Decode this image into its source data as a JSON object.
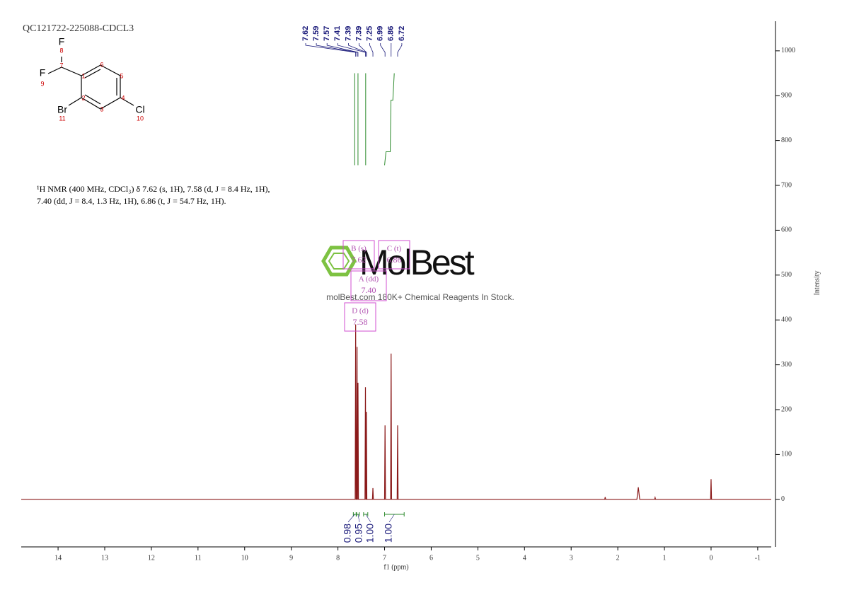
{
  "chart_data": {
    "type": "line",
    "title": "QC121722-225088-CDCL3",
    "description": [
      "¹H NMR (400 MHz, CDCl₃) δ 7.62 (s, 1H), 7.58 (d, J = 8.4 Hz, 1H),",
      "7.40 (dd, J = 8.4, 1.3 Hz, 1H), 6.86 (t, J = 54.7 Hz, 1H)."
    ],
    "x_label": "f1 (ppm)",
    "y_label": "Intensity",
    "xlim": [
      14.79,
      -1.29
    ],
    "xticks": [
      14,
      13,
      12,
      11,
      10,
      9,
      8,
      7,
      6,
      5,
      4,
      3,
      2,
      1,
      0,
      -1
    ],
    "ylim": [
      -106,
      1066
    ],
    "yticks": [
      0,
      100,
      200,
      300,
      400,
      500,
      600,
      700,
      800,
      900,
      1000
    ],
    "x": [
      14.79,
      7.63,
      7.62,
      7.61,
      7.6,
      7.59,
      7.585,
      7.58,
      7.57,
      7.56,
      7.42,
      7.41,
      7.4,
      7.395,
      7.39,
      7.38,
      7.26,
      7.25,
      7.24,
      7.0,
      6.99,
      6.98,
      6.87,
      6.86,
      6.85,
      6.73,
      6.72,
      6.71,
      2.28,
      2.27,
      2.26,
      1.59,
      1.56,
      1.53,
      1.21,
      1.2,
      1.19,
      0.01,
      0,
      -0.01,
      -1.29
    ],
    "series": [
      {
        "color": "#8b1a1a",
        "values": [
          0,
          0,
          390,
          0,
          0,
          340,
          0,
          0,
          260,
          0,
          0,
          250,
          0,
          0,
          195,
          0,
          0,
          25,
          0,
          0,
          165,
          0,
          0,
          325,
          0,
          0,
          165,
          0,
          0,
          5,
          0,
          0,
          27,
          0,
          0,
          4,
          0,
          0,
          45,
          0,
          0
        ]
      }
    ],
    "peaks": [
      7.62,
      7.59,
      7.57,
      7.41,
      7.39,
      7.39,
      7.25,
      6.99,
      6.86,
      6.72
    ],
    "integrals": {
      "values": [
        0.98,
        0.95,
        1,
        1
      ],
      "value_labels": [
        "0.98",
        "0.95",
        "1.00",
        "1.00"
      ],
      "ranges": [
        [
          7.67,
          7.61
        ],
        [
          7.6,
          7.54
        ],
        [
          7.45,
          7.36
        ],
        [
          7.0,
          6.58
        ]
      ]
    },
    "multiplets": [
      {
        "label": "B (s)",
        "shift": "7.62"
      },
      {
        "label": "C (t)",
        "shift": "6.86"
      },
      {
        "label": "A (dd)",
        "shift": "7.40"
      },
      {
        "label": "D (d)",
        "shift": "7.58"
      }
    ],
    "watermark": [
      "MolBest",
      "molBest.com 180K+ Chemical Reagents In Stock."
    ]
  },
  "molecule": {
    "atoms": [
      {
        "symbol": "F",
        "number": 8
      },
      {
        "symbol": "F",
        "number": 9
      },
      {
        "number": 7
      },
      {
        "number": 1
      },
      {
        "number": 2
      },
      {
        "number": 3
      },
      {
        "number": 4
      },
      {
        "number": 5
      },
      {
        "number": 6
      },
      {
        "symbol": "Br",
        "number": 11
      },
      {
        "symbol": "Cl",
        "number": 10
      }
    ]
  }
}
